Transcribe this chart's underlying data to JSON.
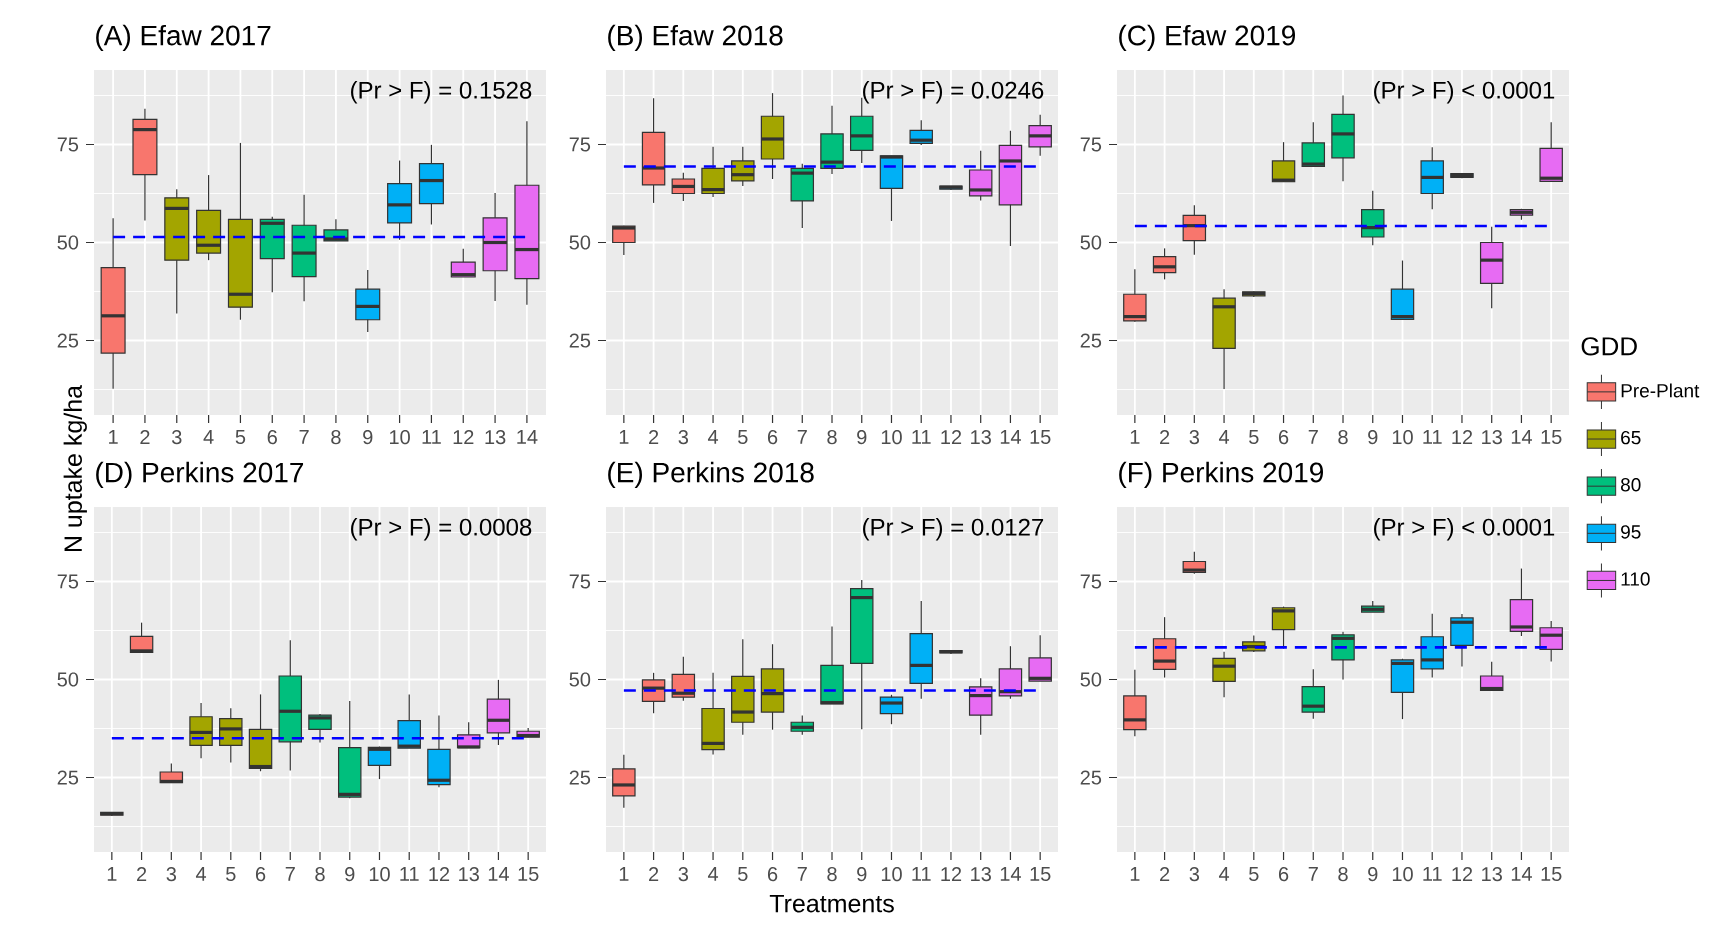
{
  "chart_data": [
    {
      "type": "box",
      "title": "(A) Efaw 2017",
      "categories": [
        "1",
        "2",
        "3",
        "4",
        "5",
        "6",
        "7",
        "8",
        "9",
        "10",
        "11",
        "12",
        "13",
        "14"
      ],
      "ylim": [
        6,
        94
      ],
      "yticks": [
        25,
        50,
        75
      ],
      "grid": true,
      "annotations": [
        "(Pr > F) = 0.1528"
      ],
      "ref_lines": [
        {
          "axis": "y",
          "value": 51.4,
          "color": "#0000ff",
          "line_style": "dashed"
        }
      ],
      "series": [
        {
          "color": "#f8766d",
          "boxes": [
            {
              "low": 12.7,
              "q1": 21.8,
              "median": 31.3,
              "q3": 43.6,
              "high": 56.2
            },
            {
              "low": 55.6,
              "q1": 67.3,
              "median": 78.8,
              "q3": 81.4,
              "high": 84.1
            },
            null,
            null,
            null,
            null,
            null,
            null,
            null,
            null,
            null,
            null,
            null,
            null
          ]
        },
        {
          "color": "#a3a500",
          "boxes": [
            null,
            null,
            {
              "low": 31.9,
              "q1": 45.5,
              "median": 58.7,
              "q3": 61.4,
              "high": 63.6
            },
            {
              "low": 45.5,
              "q1": 47.3,
              "median": 49.3,
              "q3": 58.2,
              "high": 67.2
            },
            {
              "low": 30.3,
              "q1": 33.5,
              "median": 36.8,
              "q3": 55.9,
              "high": 75.4
            },
            null,
            null,
            null,
            null,
            null,
            null,
            null,
            null,
            null
          ]
        },
        {
          "color": "#00bf7d",
          "boxes": [
            null,
            null,
            null,
            null,
            null,
            {
              "low": 37.3,
              "q1": 45.9,
              "median": 54.9,
              "q3": 55.9,
              "high": 56.6
            },
            {
              "low": 35.0,
              "q1": 41.3,
              "median": 47.3,
              "q3": 54.4,
              "high": 62.2
            },
            {
              "low": 50.4,
              "q1": 50.4,
              "median": 50.9,
              "q3": 53.2,
              "high": 55.9
            },
            null,
            null,
            null,
            null,
            null,
            null
          ]
        },
        {
          "color": "#00b0f6",
          "boxes": [
            null,
            null,
            null,
            null,
            null,
            null,
            null,
            null,
            {
              "low": 27.2,
              "q1": 30.3,
              "median": 33.7,
              "q3": 38.1,
              "high": 43.0
            },
            {
              "low": 50.7,
              "q1": 55.0,
              "median": 59.6,
              "q3": 65.0,
              "high": 70.9
            },
            {
              "low": 54.6,
              "q1": 59.9,
              "median": 65.8,
              "q3": 70.1,
              "high": 74.9
            },
            null,
            null,
            null
          ]
        },
        {
          "color": "#e76bf3",
          "boxes": [
            null,
            null,
            null,
            null,
            null,
            null,
            null,
            null,
            null,
            null,
            null,
            {
              "low": 41.2,
              "q1": 41.2,
              "median": 41.8,
              "q3": 45.0,
              "high": 48.4
            },
            {
              "low": 35.1,
              "q1": 42.8,
              "median": 50.0,
              "q3": 56.3,
              "high": 62.6
            },
            {
              "low": 34.1,
              "q1": 40.8,
              "median": 48.2,
              "q3": 64.6,
              "high": 80.9
            }
          ]
        }
      ]
    },
    {
      "type": "box",
      "title": "(B) Efaw 2018",
      "categories": [
        "1",
        "2",
        "3",
        "4",
        "5",
        "6",
        "7",
        "8",
        "9",
        "10",
        "11",
        "12",
        "13",
        "14",
        "15"
      ],
      "ylim": [
        6,
        94
      ],
      "yticks": [
        25,
        50,
        75
      ],
      "grid": true,
      "annotations": [
        "(Pr > F) = 0.0246"
      ],
      "ref_lines": [
        {
          "axis": "y",
          "value": 69.4,
          "color": "#0000ff",
          "line_style": "dashed"
        }
      ],
      "series": [
        {
          "color": "#f8766d",
          "boxes": [
            {
              "low": 46.8,
              "q1": 50.0,
              "median": 53.7,
              "q3": 54.2,
              "high": 54.3
            },
            {
              "low": 60.1,
              "q1": 64.7,
              "median": 69.0,
              "q3": 78.1,
              "high": 86.8
            },
            {
              "low": 60.6,
              "q1": 62.5,
              "median": 64.3,
              "q3": 66.2,
              "high": 67.8
            },
            null,
            null,
            null,
            null,
            null,
            null,
            null,
            null,
            null,
            null,
            null,
            null
          ]
        },
        {
          "color": "#a3a500",
          "boxes": [
            null,
            null,
            null,
            {
              "low": 61.6,
              "q1": 62.5,
              "median": 63.5,
              "q3": 68.9,
              "high": 74.4
            },
            {
              "low": 64.4,
              "q1": 65.7,
              "median": 67.3,
              "q3": 70.8,
              "high": 74.4
            },
            {
              "low": 66.2,
              "q1": 71.3,
              "median": 76.4,
              "q3": 82.2,
              "high": 88.1
            },
            null,
            null,
            null,
            null,
            null,
            null,
            null,
            null,
            null
          ]
        },
        {
          "color": "#00bf7d",
          "boxes": [
            null,
            null,
            null,
            null,
            null,
            null,
            {
              "low": 53.7,
              "q1": 60.6,
              "median": 67.7,
              "q3": 68.9,
              "high": 70.1
            },
            {
              "low": 67.5,
              "q1": 68.9,
              "median": 70.5,
              "q3": 77.7,
              "high": 84.9
            },
            {
              "low": 70.3,
              "q1": 73.5,
              "median": 77.2,
              "q3": 82.2,
              "high": 86.9
            },
            null,
            null,
            null,
            null,
            null,
            null
          ]
        },
        {
          "color": "#00b0f6",
          "boxes": [
            null,
            null,
            null,
            null,
            null,
            null,
            null,
            null,
            null,
            {
              "low": 55.5,
              "q1": 63.8,
              "median": 71.8,
              "q3": 72.1,
              "high": 72.1
            },
            {
              "low": 74.9,
              "q1": 75.3,
              "median": 76.1,
              "q3": 78.6,
              "high": 81.2
            },
            {
              "low": 63.4,
              "q1": 63.6,
              "median": 64.1,
              "q3": 64.4,
              "high": 64.4
            },
            null,
            null,
            null
          ]
        },
        {
          "color": "#e76bf3",
          "boxes": [
            null,
            null,
            null,
            null,
            null,
            null,
            null,
            null,
            null,
            null,
            null,
            null,
            {
              "low": 60.7,
              "q1": 61.9,
              "median": 63.4,
              "q3": 68.5,
              "high": 73.4
            },
            {
              "low": 49.1,
              "q1": 59.6,
              "median": 70.8,
              "q3": 74.8,
              "high": 78.5
            },
            {
              "low": 72.1,
              "q1": 74.4,
              "median": 77.2,
              "q3": 79.8,
              "high": 82.6
            }
          ]
        }
      ]
    },
    {
      "type": "box",
      "title": "(C) Efaw 2019",
      "categories": [
        "1",
        "2",
        "3",
        "4",
        "5",
        "6",
        "7",
        "8",
        "9",
        "10",
        "11",
        "12",
        "13",
        "14",
        "15"
      ],
      "ylim": [
        6,
        94
      ],
      "yticks": [
        25,
        50,
        75
      ],
      "grid": true,
      "annotations": [
        "(Pr > F) < 0.0001"
      ],
      "ref_lines": [
        {
          "axis": "y",
          "value": 54.2,
          "color": "#0000ff",
          "line_style": "dashed"
        }
      ],
      "legend": "right",
      "legend_title": "GDD",
      "series": [
        {
          "name": "Pre-Plant",
          "color": "#f8766d",
          "boxes": [
            {
              "low": 29.8,
              "q1": 30.0,
              "median": 31.1,
              "q3": 36.8,
              "high": 43.2
            },
            {
              "low": 40.6,
              "q1": 42.3,
              "median": 43.8,
              "q3": 46.4,
              "high": 48.5
            },
            {
              "low": 46.9,
              "q1": 50.5,
              "median": 54.3,
              "q3": 56.9,
              "high": 59.5
            },
            null,
            null,
            null,
            null,
            null,
            null,
            null,
            null,
            null,
            null,
            null,
            null
          ]
        },
        {
          "name": "65",
          "color": "#a3a500",
          "boxes": [
            null,
            null,
            null,
            {
              "low": 12.6,
              "q1": 23.0,
              "median": 33.6,
              "q3": 35.8,
              "high": 38.1
            },
            {
              "low": 36.1,
              "q1": 36.4,
              "median": 37.0,
              "q3": 37.4,
              "high": 37.5
            },
            {
              "low": 65.5,
              "q1": 65.5,
              "median": 65.9,
              "q3": 70.8,
              "high": 75.6
            },
            null,
            null,
            null,
            null,
            null,
            null,
            null,
            null,
            null
          ]
        },
        {
          "name": "80",
          "color": "#00bf7d",
          "boxes": [
            null,
            null,
            null,
            null,
            null,
            null,
            {
              "low": 69.4,
              "q1": 69.4,
              "median": 70.0,
              "q3": 75.4,
              "high": 80.7
            },
            {
              "low": 65.6,
              "q1": 71.6,
              "median": 77.7,
              "q3": 82.7,
              "high": 87.5
            },
            {
              "low": 49.3,
              "q1": 51.4,
              "median": 53.8,
              "q3": 58.4,
              "high": 63.2
            },
            null,
            null,
            null,
            null,
            null,
            null
          ]
        },
        {
          "name": "95",
          "color": "#00b0f6",
          "boxes": [
            null,
            null,
            null,
            null,
            null,
            null,
            null,
            null,
            null,
            {
              "low": 30.4,
              "q1": 30.4,
              "median": 31.1,
              "q3": 38.1,
              "high": 45.4
            },
            {
              "low": 58.5,
              "q1": 62.5,
              "median": 66.6,
              "q3": 70.8,
              "high": 74.3
            },
            {
              "low": 66.4,
              "q1": 66.6,
              "median": 67.1,
              "q3": 67.6,
              "high": 67.6
            },
            null,
            null,
            null
          ]
        },
        {
          "name": "110",
          "color": "#e76bf3",
          "boxes": [
            null,
            null,
            null,
            null,
            null,
            null,
            null,
            null,
            null,
            null,
            null,
            null,
            {
              "low": 33.2,
              "q1": 39.6,
              "median": 45.5,
              "q3": 50.0,
              "high": 54.0
            },
            {
              "low": 55.8,
              "q1": 57.0,
              "median": 57.7,
              "q3": 58.4,
              "high": 58.6
            },
            {
              "low": 65.6,
              "q1": 65.6,
              "median": 66.4,
              "q3": 74.0,
              "high": 80.7
            }
          ]
        }
      ]
    },
    {
      "type": "box",
      "title": "(D) Perkins 2017",
      "ylabel": "N uptake kg/ha",
      "categories": [
        "1",
        "2",
        "3",
        "4",
        "5",
        "6",
        "7",
        "8",
        "9",
        "10",
        "11",
        "12",
        "13",
        "14",
        "15"
      ],
      "ylim": [
        6,
        94
      ],
      "yticks": [
        25,
        50,
        75
      ],
      "grid": true,
      "annotations": [
        "(Pr > F) = 0.0008"
      ],
      "ref_lines": [
        {
          "axis": "y",
          "value": 35.0,
          "color": "#0000ff",
          "line_style": "dashed"
        }
      ],
      "series": [
        {
          "color": "#f8766d",
          "boxes": [
            {
              "low": 15.2,
              "q1": 15.4,
              "median": 15.8,
              "q3": 16.1,
              "high": 16.1
            },
            {
              "low": 56.9,
              "q1": 56.9,
              "median": 57.3,
              "q3": 61.0,
              "high": 64.5
            },
            {
              "low": 23.7,
              "q1": 23.7,
              "median": 24.0,
              "q3": 26.4,
              "high": 28.6
            },
            null,
            null,
            null,
            null,
            null,
            null,
            null,
            null,
            null,
            null,
            null,
            null
          ]
        },
        {
          "color": "#a3a500",
          "boxes": [
            null,
            null,
            null,
            {
              "low": 29.9,
              "q1": 33.2,
              "median": 36.5,
              "q3": 40.5,
              "high": 44.0
            },
            {
              "low": 28.8,
              "q1": 33.2,
              "median": 37.4,
              "q3": 40.0,
              "high": 42.7
            },
            {
              "low": 26.6,
              "q1": 27.3,
              "median": 27.8,
              "q3": 37.3,
              "high": 46.2
            },
            null,
            null,
            null,
            null,
            null,
            null,
            null,
            null,
            null
          ]
        },
        {
          "color": "#00bf7d",
          "boxes": [
            null,
            null,
            null,
            null,
            null,
            null,
            {
              "low": 26.8,
              "q1": 34.1,
              "median": 41.9,
              "q3": 50.9,
              "high": 60.0
            },
            {
              "low": 33.9,
              "q1": 37.3,
              "median": 40.2,
              "q3": 40.9,
              "high": 41.2
            },
            {
              "low": 19.7,
              "q1": 20.0,
              "median": 20.7,
              "q3": 32.6,
              "high": 44.5
            },
            null,
            null,
            null,
            null,
            null,
            null
          ]
        },
        {
          "color": "#00b0f6",
          "boxes": [
            null,
            null,
            null,
            null,
            null,
            null,
            null,
            null,
            null,
            {
              "low": 24.6,
              "q1": 28.1,
              "median": 32.2,
              "q3": 32.7,
              "high": 32.9
            },
            {
              "low": 32.5,
              "q1": 32.5,
              "median": 33.0,
              "q3": 39.5,
              "high": 46.2
            },
            {
              "low": 22.5,
              "q1": 23.2,
              "median": 24.3,
              "q3": 32.2,
              "high": 40.8
            },
            null,
            null,
            null
          ]
        },
        {
          "color": "#e76bf3",
          "boxes": [
            null,
            null,
            null,
            null,
            null,
            null,
            null,
            null,
            null,
            null,
            null,
            null,
            {
              "low": 32.6,
              "q1": 32.6,
              "median": 32.8,
              "q3": 35.9,
              "high": 39.1
            },
            {
              "low": 33.3,
              "q1": 36.4,
              "median": 39.6,
              "q3": 45.0,
              "high": 49.9
            },
            {
              "low": 35.3,
              "q1": 35.3,
              "median": 35.7,
              "q3": 36.8,
              "high": 37.6
            }
          ]
        }
      ]
    },
    {
      "type": "box",
      "title": "(E) Perkins 2018",
      "xlabel": "Treatments",
      "categories": [
        "1",
        "2",
        "3",
        "4",
        "5",
        "6",
        "7",
        "8",
        "9",
        "10",
        "11",
        "12",
        "13",
        "14",
        "15"
      ],
      "ylim": [
        6,
        94
      ],
      "yticks": [
        25,
        50,
        75
      ],
      "grid": true,
      "annotations": [
        "(Pr > F) = 0.0127"
      ],
      "ref_lines": [
        {
          "axis": "y",
          "value": 47.2,
          "color": "#0000ff",
          "line_style": "dashed"
        }
      ],
      "series": [
        {
          "color": "#f8766d",
          "boxes": [
            {
              "low": 17.3,
              "q1": 20.3,
              "median": 23.1,
              "q3": 27.2,
              "high": 30.8
            },
            {
              "low": 41.4,
              "q1": 44.4,
              "median": 47.8,
              "q3": 49.9,
              "high": 51.7
            },
            {
              "low": 44.6,
              "q1": 45.5,
              "median": 46.5,
              "q3": 51.3,
              "high": 55.8
            },
            null,
            null,
            null,
            null,
            null,
            null,
            null,
            null,
            null,
            null,
            null,
            null
          ]
        },
        {
          "color": "#a3a500",
          "boxes": [
            null,
            null,
            null,
            {
              "low": 30.9,
              "q1": 32.1,
              "median": 33.7,
              "q3": 42.6,
              "high": 51.7
            },
            {
              "low": 35.9,
              "q1": 39.1,
              "median": 41.7,
              "q3": 50.8,
              "high": 60.3
            },
            {
              "low": 37.2,
              "q1": 41.7,
              "median": 46.4,
              "q3": 52.7,
              "high": 59.0
            },
            null,
            null,
            null,
            null,
            null,
            null,
            null,
            null,
            null
          ]
        },
        {
          "color": "#00bf7d",
          "boxes": [
            null,
            null,
            null,
            null,
            null,
            null,
            {
              "low": 35.9,
              "q1": 36.8,
              "median": 37.8,
              "q3": 39.1,
              "high": 40.8
            },
            {
              "low": 43.8,
              "q1": 43.8,
              "median": 44.1,
              "q3": 53.6,
              "high": 63.5
            },
            {
              "low": 37.3,
              "q1": 54.1,
              "median": 70.9,
              "q3": 73.2,
              "high": 75.4
            },
            null,
            null,
            null,
            null,
            null,
            null
          ]
        },
        {
          "color": "#00b0f6",
          "boxes": [
            null,
            null,
            null,
            null,
            null,
            null,
            null,
            null,
            null,
            {
              "low": 38.6,
              "q1": 41.3,
              "median": 44.0,
              "q3": 45.5,
              "high": 46.1
            },
            {
              "low": 45.1,
              "q1": 49.0,
              "median": 53.6,
              "q3": 61.7,
              "high": 70.0
            },
            {
              "low": 56.5,
              "q1": 56.8,
              "median": 57.1,
              "q3": 57.4,
              "high": 57.4
            },
            null,
            null,
            null
          ]
        },
        {
          "color": "#e76bf3",
          "boxes": [
            null,
            null,
            null,
            null,
            null,
            null,
            null,
            null,
            null,
            null,
            null,
            null,
            {
              "low": 35.9,
              "q1": 40.9,
              "median": 45.9,
              "q3": 48.1,
              "high": 50.3
            },
            {
              "low": 45.1,
              "q1": 45.8,
              "median": 46.9,
              "q3": 52.7,
              "high": 58.5
            },
            {
              "low": 49.6,
              "q1": 49.6,
              "median": 50.3,
              "q3": 55.5,
              "high": 61.3
            }
          ]
        }
      ]
    },
    {
      "type": "box",
      "title": "(F) Perkins 2019",
      "categories": [
        "1",
        "2",
        "3",
        "4",
        "5",
        "6",
        "7",
        "8",
        "9",
        "10",
        "11",
        "12",
        "13",
        "14",
        "15"
      ],
      "ylim": [
        6,
        94
      ],
      "yticks": [
        25,
        50,
        75
      ],
      "grid": true,
      "annotations": [
        "(Pr > F) < 0.0001"
      ],
      "ref_lines": [
        {
          "axis": "y",
          "value": 58.2,
          "color": "#0000ff",
          "line_style": "dashed"
        }
      ],
      "series": [
        {
          "color": "#f8766d",
          "boxes": [
            {
              "low": 35.5,
              "q1": 37.2,
              "median": 39.7,
              "q3": 45.8,
              "high": 52.5
            },
            {
              "low": 50.5,
              "q1": 52.6,
              "median": 54.7,
              "q3": 60.4,
              "high": 65.9
            },
            {
              "low": 77.0,
              "q1": 77.3,
              "median": 77.9,
              "q3": 80.1,
              "high": 82.6
            },
            null,
            null,
            null,
            null,
            null,
            null,
            null,
            null,
            null,
            null,
            null,
            null
          ]
        },
        {
          "color": "#a3a500",
          "boxes": [
            null,
            null,
            null,
            {
              "low": 45.5,
              "q1": 49.5,
              "median": 53.4,
              "q3": 55.4,
              "high": 57.1
            },
            {
              "low": 57.0,
              "q1": 57.3,
              "median": 58.4,
              "q3": 59.6,
              "high": 61.2
            },
            {
              "low": 57.9,
              "q1": 62.7,
              "median": 67.5,
              "q3": 68.3,
              "high": 68.6
            },
            null,
            null,
            null,
            null,
            null,
            null,
            null,
            null,
            null
          ]
        },
        {
          "color": "#00bf7d",
          "boxes": [
            null,
            null,
            null,
            null,
            null,
            null,
            {
              "low": 40.0,
              "q1": 41.7,
              "median": 43.2,
              "q3": 48.2,
              "high": 52.6
            },
            {
              "low": 50.0,
              "q1": 55.0,
              "median": 60.5,
              "q3": 61.4,
              "high": 62.2
            },
            {
              "low": 67.2,
              "q1": 67.2,
              "median": 67.9,
              "q3": 68.7,
              "high": 70.0
            },
            null,
            null,
            null,
            null,
            null,
            null
          ]
        },
        {
          "color": "#00b0f6",
          "boxes": [
            null,
            null,
            null,
            null,
            null,
            null,
            null,
            null,
            null,
            {
              "low": 39.9,
              "q1": 46.7,
              "median": 54.1,
              "q3": 55.0,
              "high": 55.3
            },
            {
              "low": 50.5,
              "q1": 52.7,
              "median": 55.0,
              "q3": 60.9,
              "high": 66.8
            },
            {
              "low": 53.3,
              "q1": 58.7,
              "median": 64.6,
              "q3": 65.7,
              "high": 66.7
            },
            null,
            null,
            null
          ]
        },
        {
          "color": "#e76bf3",
          "boxes": [
            null,
            null,
            null,
            null,
            null,
            null,
            null,
            null,
            null,
            null,
            null,
            null,
            {
              "low": 47.2,
              "q1": 47.2,
              "median": 47.7,
              "q3": 50.9,
              "high": 54.5
            },
            {
              "low": 61.1,
              "q1": 62.3,
              "median": 63.4,
              "q3": 70.4,
              "high": 78.3
            },
            {
              "low": 54.6,
              "q1": 57.7,
              "median": 61.3,
              "q3": 63.2,
              "high": 64.9
            }
          ]
        }
      ]
    }
  ]
}
